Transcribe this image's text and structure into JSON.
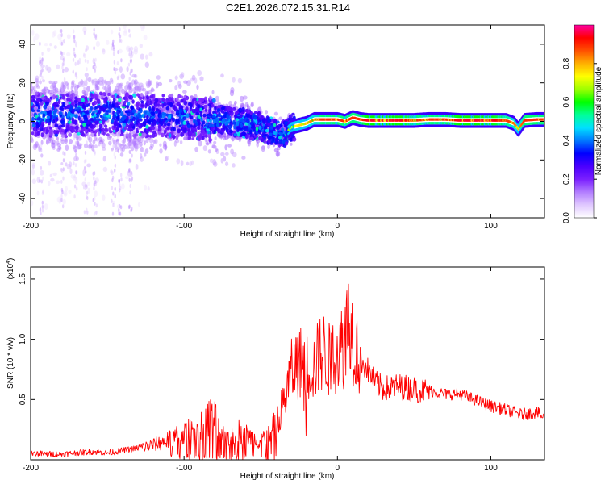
{
  "title": "C2E1.2026.072.15.31.R14",
  "chart_data": [
    {
      "type": "heatmap",
      "xlabel": "Height of straight line (km)",
      "ylabel": "Frequency (Hz)",
      "xlim": [
        -200,
        135
      ],
      "ylim": [
        -50,
        50
      ],
      "xticks": [
        -200,
        -100,
        0,
        100
      ],
      "xtick_labels": [
        "-200",
        "-100",
        "0",
        "100"
      ],
      "yticks": [
        -40,
        -20,
        0,
        20,
        40
      ],
      "ytick_labels": [
        "-40",
        "-20",
        "0",
        "20",
        "40"
      ],
      "colorbar": {
        "label": "Normalized spectral amplitude",
        "range": [
          0,
          1
        ],
        "ticks": [
          0.0,
          0.2,
          0.4,
          0.6,
          0.8
        ],
        "tick_labels": [
          "0.0",
          "0.2",
          "0.4",
          "0.6",
          "0.8"
        ],
        "colors": [
          "#ffffff",
          "#e0c8ff",
          "#b27dff",
          "#7a1fff",
          "#4a00ff",
          "#0000ff",
          "#0078ff",
          "#00e0ff",
          "#00ff9a",
          "#00ff00",
          "#9dff00",
          "#ffff00",
          "#ffb000",
          "#ff5000",
          "#ff0000",
          "#ff00a0"
        ]
      },
      "ridge": {
        "x": [
          -200,
          -180,
          -160,
          -140,
          -120,
          -100,
          -80,
          -60,
          -50,
          -40,
          -35,
          -30,
          -25,
          -20,
          -15,
          -10,
          -5,
          0,
          5,
          10,
          15,
          20,
          30,
          40,
          50,
          60,
          70,
          80,
          90,
          100,
          110,
          115,
          118,
          122,
          130,
          135
        ],
        "y": [
          4,
          3,
          4,
          3,
          3,
          2,
          1,
          -1,
          -3,
          -6,
          -7,
          -3,
          -2,
          -1,
          1,
          1,
          1,
          1,
          0,
          2,
          1,
          0.5,
          0.5,
          0.5,
          0.5,
          1,
          1,
          0.5,
          0.5,
          0.5,
          0.5,
          -1,
          -4,
          0.5,
          1,
          1
        ],
        "peak_amplitude": [
          0.45,
          0.45,
          0.5,
          0.45,
          0.45,
          0.45,
          0.45,
          0.5,
          0.5,
          0.6,
          0.6,
          0.7,
          0.75,
          0.8,
          0.85,
          0.9,
          0.9,
          0.9,
          0.9,
          0.9,
          0.9,
          0.95,
          0.95,
          0.95,
          0.9,
          0.9,
          0.9,
          0.95,
          0.95,
          0.95,
          0.9,
          0.85,
          0.8,
          0.9,
          0.9,
          0.9
        ]
      }
    },
    {
      "type": "line",
      "xlabel": "Height of straight line (km)",
      "ylabel": "SNR (10 * v/v)",
      "y_multiplier": "(x10",
      "y_multiplier_exponent": "4",
      "y_multiplier_close": ")",
      "xlim": [
        -200,
        135
      ],
      "ylim": [
        0,
        1.6
      ],
      "xticks": [
        -200,
        -100,
        0,
        100
      ],
      "xtick_labels": [
        "-200",
        "-100",
        "0",
        "100"
      ],
      "yticks": [
        0.5,
        1.0,
        1.5
      ],
      "ytick_labels": [
        "0.5",
        "1.0",
        "1.5"
      ],
      "series": [
        {
          "name": "SNR",
          "color": "#ff0000",
          "x": [
            -200,
            -190,
            -180,
            -170,
            -160,
            -150,
            -140,
            -130,
            -120,
            -110,
            -100,
            -95,
            -90,
            -85,
            -82,
            -78,
            -75,
            -70,
            -65,
            -60,
            -55,
            -50,
            -45,
            -40,
            -35,
            -30,
            -25,
            -20,
            -15,
            -10,
            -5,
            0,
            5,
            8,
            10,
            15,
            20,
            25,
            30,
            40,
            50,
            60,
            70,
            80,
            90,
            100,
            110,
            120,
            130,
            135
          ],
          "y": [
            0.06,
            0.05,
            0.05,
            0.06,
            0.07,
            0.06,
            0.08,
            0.1,
            0.13,
            0.17,
            0.23,
            0.25,
            0.28,
            0.35,
            0.4,
            0.3,
            0.22,
            0.2,
            0.25,
            0.22,
            0.18,
            0.17,
            0.22,
            0.3,
            0.5,
            0.75,
            0.85,
            0.8,
            0.8,
            0.95,
            0.85,
            0.95,
            1.0,
            1.3,
            1.05,
            0.85,
            0.75,
            0.65,
            0.6,
            0.62,
            0.6,
            0.58,
            0.55,
            0.55,
            0.5,
            0.45,
            0.42,
            0.38,
            0.4,
            0.35
          ]
        }
      ]
    }
  ]
}
